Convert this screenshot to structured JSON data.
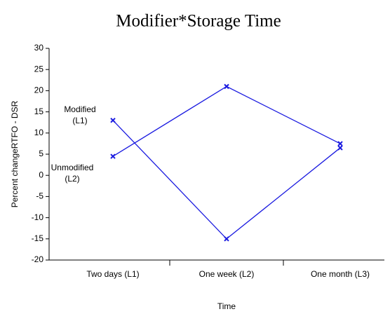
{
  "chart_data": {
    "type": "line",
    "title": "Modifier*Storage Time",
    "x_label": "Time",
    "y_label": "Percent changeRTFO - DSR",
    "categories": [
      "Two days (L1)",
      "One week (L2)",
      "One month (L3)"
    ],
    "series": [
      {
        "name": "Modified (L1)",
        "color": "#1a1ae0",
        "values": [
          13,
          -15,
          6.5
        ]
      },
      {
        "name": "Unmodified (L2)",
        "color": "#1a1ae0",
        "values": [
          4.5,
          21,
          7.5
        ]
      }
    ],
    "ylim": [
      -20,
      30
    ],
    "yticks": [
      -20,
      -15,
      -10,
      -5,
      0,
      5,
      10,
      15,
      20,
      25,
      30
    ]
  }
}
